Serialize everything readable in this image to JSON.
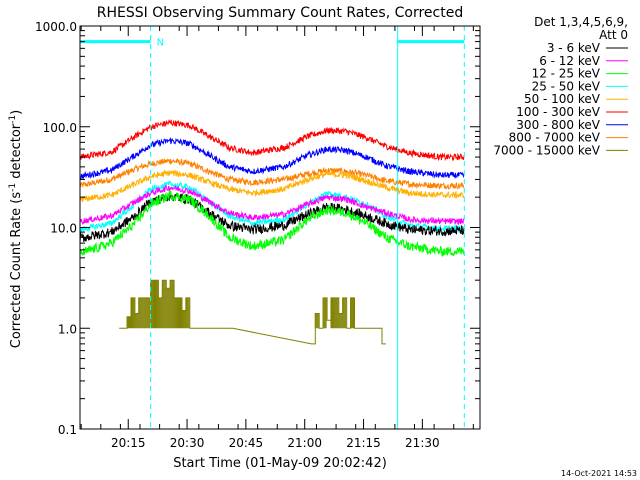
{
  "chart_data": {
    "type": "line",
    "title": "RHESSI Observing Summary Count Rates, Corrected",
    "xlabel": "Start Time (01-May-09 20:02:42)",
    "ylabel_main": "Corrected Count Rate (s",
    "ylabel_sup1": "-1",
    "ylabel_mid": " detector",
    "ylabel_sup2": "-1",
    "ylabel_end": ")",
    "yscale": "log",
    "ylim": [
      0.1,
      1000
    ],
    "xlim_min": [
      0,
      102
    ],
    "y_ticks": [
      {
        "value": 1000,
        "label": "1000.0"
      },
      {
        "value": 100,
        "label": "100.0"
      },
      {
        "value": 10,
        "label": "10.0"
      },
      {
        "value": 1,
        "label": "1.0"
      },
      {
        "value": 0.1,
        "label": "0.1"
      }
    ],
    "x_ticks": [
      {
        "minute": 12.3,
        "label": "20:15"
      },
      {
        "minute": 27.3,
        "label": "20:30"
      },
      {
        "minute": 42.3,
        "label": "20:45"
      },
      {
        "minute": 57.3,
        "label": "21:00"
      },
      {
        "minute": 72.3,
        "label": "21:15"
      },
      {
        "minute": 87.3,
        "label": "21:30"
      }
    ],
    "legend_header": [
      "Det 1,3,4,5,6,9,",
      "Att 0"
    ],
    "series": [
      {
        "name": "3 - 6 keV",
        "color": "#000000",
        "profile": [
          [
            0,
            7.8
          ],
          [
            8,
            9
          ],
          [
            14,
            13
          ],
          [
            18,
            18
          ],
          [
            23,
            20.5
          ],
          [
            28,
            19
          ],
          [
            33,
            14
          ],
          [
            38,
            10.5
          ],
          [
            44,
            9.5
          ],
          [
            52,
            10.5
          ],
          [
            58,
            13.5
          ],
          [
            63,
            16
          ],
          [
            68,
            15
          ],
          [
            73,
            13
          ],
          [
            78,
            11
          ],
          [
            84,
            9.5
          ],
          [
            92,
            9.2
          ],
          [
            98,
            9.3
          ]
        ]
      },
      {
        "name": "6 - 12 keV",
        "color": "#ff00ff",
        "profile": [
          [
            0,
            11.5
          ],
          [
            8,
            13
          ],
          [
            14,
            18
          ],
          [
            18,
            22
          ],
          [
            23,
            25
          ],
          [
            28,
            23
          ],
          [
            33,
            18
          ],
          [
            38,
            14
          ],
          [
            44,
            12.5
          ],
          [
            52,
            13.5
          ],
          [
            58,
            17
          ],
          [
            63,
            20
          ],
          [
            68,
            19
          ],
          [
            73,
            16
          ],
          [
            78,
            14
          ],
          [
            84,
            12
          ],
          [
            92,
            11.5
          ],
          [
            98,
            11.5
          ]
        ]
      },
      {
        "name": "12 - 25 keV",
        "color": "#00ff00",
        "profile": [
          [
            0,
            5.5
          ],
          [
            8,
            7
          ],
          [
            14,
            11
          ],
          [
            18,
            17
          ],
          [
            23,
            21
          ],
          [
            28,
            19
          ],
          [
            33,
            13
          ],
          [
            38,
            8
          ],
          [
            44,
            6.5
          ],
          [
            52,
            7.5
          ],
          [
            58,
            12
          ],
          [
            63,
            15
          ],
          [
            68,
            14
          ],
          [
            73,
            11
          ],
          [
            78,
            8
          ],
          [
            84,
            6.5
          ],
          [
            92,
            5.8
          ],
          [
            98,
            5.8
          ]
        ]
      },
      {
        "name": "25 - 50 keV",
        "color": "#00ffff",
        "profile": [
          [
            0,
            9.5
          ],
          [
            8,
            11
          ],
          [
            14,
            17
          ],
          [
            18,
            24
          ],
          [
            23,
            27
          ],
          [
            28,
            25
          ],
          [
            33,
            18
          ],
          [
            38,
            13
          ],
          [
            44,
            11
          ],
          [
            52,
            12
          ],
          [
            58,
            17
          ],
          [
            63,
            22
          ],
          [
            68,
            20
          ],
          [
            73,
            17
          ],
          [
            78,
            13
          ],
          [
            84,
            10.5
          ],
          [
            92,
            9.8
          ],
          [
            98,
            9.8
          ]
        ]
      },
      {
        "name": "50 - 100 keV",
        "color": "#ffb000",
        "profile": [
          [
            0,
            19
          ],
          [
            8,
            21
          ],
          [
            14,
            27
          ],
          [
            18,
            32
          ],
          [
            23,
            35
          ],
          [
            28,
            33
          ],
          [
            33,
            28
          ],
          [
            38,
            24
          ],
          [
            44,
            22
          ],
          [
            52,
            24
          ],
          [
            58,
            30
          ],
          [
            63,
            34
          ],
          [
            68,
            33
          ],
          [
            73,
            29
          ],
          [
            78,
            25
          ],
          [
            84,
            22
          ],
          [
            92,
            21
          ],
          [
            98,
            21
          ]
        ]
      },
      {
        "name": "100 - 300 keV",
        "color": "#ff0000",
        "profile": [
          [
            0,
            50
          ],
          [
            8,
            56
          ],
          [
            14,
            80
          ],
          [
            18,
            100
          ],
          [
            23,
            110
          ],
          [
            28,
            103
          ],
          [
            33,
            80
          ],
          [
            38,
            62
          ],
          [
            44,
            55
          ],
          [
            52,
            62
          ],
          [
            58,
            80
          ],
          [
            63,
            92
          ],
          [
            68,
            90
          ],
          [
            73,
            78
          ],
          [
            78,
            64
          ],
          [
            84,
            55
          ],
          [
            92,
            50
          ],
          [
            98,
            50
          ]
        ]
      },
      {
        "name": "300 - 800 keV",
        "color": "#0000ff",
        "profile": [
          [
            0,
            32
          ],
          [
            8,
            37
          ],
          [
            14,
            52
          ],
          [
            18,
            66
          ],
          [
            23,
            73
          ],
          [
            28,
            68
          ],
          [
            33,
            52
          ],
          [
            38,
            40
          ],
          [
            44,
            36
          ],
          [
            52,
            40
          ],
          [
            58,
            52
          ],
          [
            63,
            60
          ],
          [
            68,
            58
          ],
          [
            73,
            50
          ],
          [
            78,
            41
          ],
          [
            84,
            36
          ],
          [
            92,
            33
          ],
          [
            98,
            33
          ]
        ]
      },
      {
        "name": "800 - 7000 keV",
        "color": "#ff8000",
        "profile": [
          [
            0,
            26
          ],
          [
            8,
            30
          ],
          [
            14,
            38
          ],
          [
            18,
            43
          ],
          [
            23,
            46
          ],
          [
            28,
            43
          ],
          [
            33,
            36
          ],
          [
            38,
            30
          ],
          [
            44,
            28
          ],
          [
            52,
            30
          ],
          [
            58,
            34
          ],
          [
            63,
            37
          ],
          [
            68,
            36
          ],
          [
            73,
            33
          ],
          [
            78,
            29
          ],
          [
            84,
            27
          ],
          [
            92,
            26
          ],
          [
            98,
            26
          ]
        ]
      },
      {
        "name": "7000 - 15000 keV",
        "color": "#808000",
        "blocks": [
          [
            10,
            12,
            1
          ],
          [
            12,
            13,
            1.3
          ],
          [
            13,
            14,
            2
          ],
          [
            14,
            15,
            1.4
          ],
          [
            15,
            16,
            2
          ],
          [
            16,
            18,
            2
          ],
          [
            18,
            20,
            3
          ],
          [
            20,
            21,
            2
          ],
          [
            21,
            22,
            3
          ],
          [
            22,
            23,
            2.5
          ],
          [
            23,
            24,
            3
          ],
          [
            24,
            26,
            2
          ],
          [
            26,
            27,
            1.5
          ],
          [
            27,
            28,
            2
          ],
          [
            28,
            30,
            1
          ],
          [
            30,
            35,
            1
          ],
          [
            35,
            39,
            1
          ],
          [
            59,
            60,
            0.7
          ],
          [
            60,
            61,
            1.4
          ],
          [
            61,
            62,
            1
          ],
          [
            62,
            63,
            2
          ],
          [
            63,
            64,
            1.2
          ],
          [
            64,
            66,
            2
          ],
          [
            66,
            67,
            1.4
          ],
          [
            67,
            68,
            2
          ],
          [
            68,
            69,
            1
          ],
          [
            69,
            70,
            2
          ],
          [
            70,
            72,
            1
          ],
          [
            72,
            74,
            1
          ],
          [
            74,
            77,
            1
          ],
          [
            77,
            78,
            0.7
          ]
        ]
      }
    ],
    "annotations": {
      "marker_label": "N",
      "cyan_bars": [
        [
          0,
          18
        ],
        [
          81,
          98
        ]
      ],
      "vlines_solid": [
        0,
        81
      ],
      "vlines_dashed": [
        18,
        98
      ]
    },
    "footer_timestamp": "14-Oct-2021 14:53"
  }
}
